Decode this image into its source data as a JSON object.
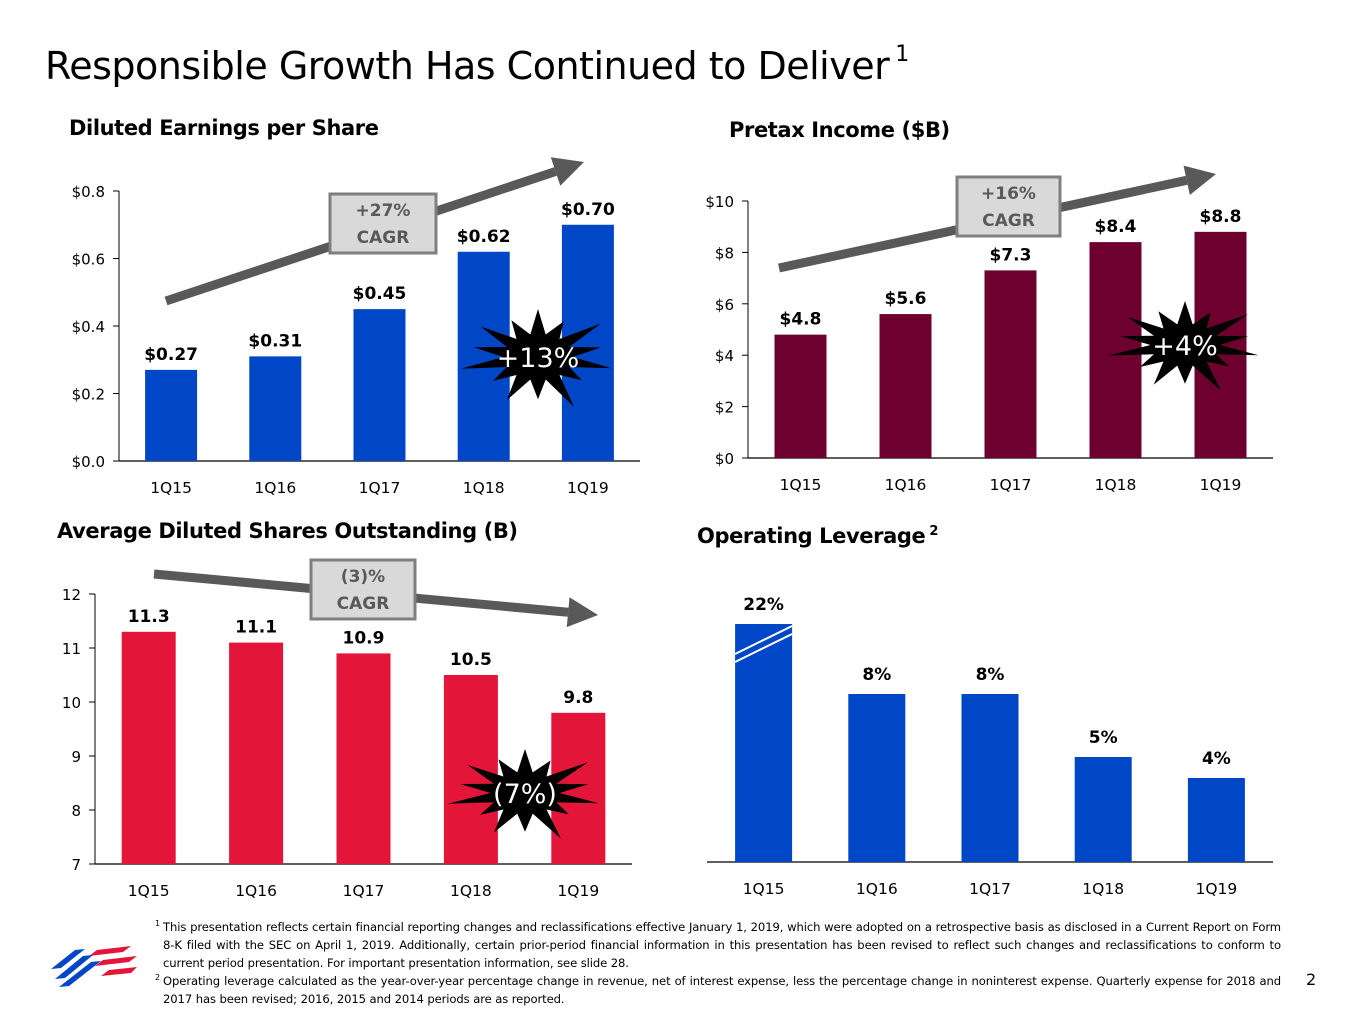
{
  "page": {
    "title": "Responsible Growth Has Continued to Deliver",
    "title_footnote": "1",
    "page_number": "2",
    "footnotes": [
      {
        "marker": "1",
        "text": "This presentation reflects certain financial reporting changes and reclassifications effective January 1, 2019, which were adopted on a retrospective basis as disclosed in a Current Report on Form 8-K filed with the SEC on April 1, 2019. Additionally, certain prior-period financial information in this presentation has been revised to reflect such changes and reclassifications to conform to current period presentation. For important presentation information, see slide 28."
      },
      {
        "marker": "2",
        "text": "Operating leverage calculated as the year-over-year percentage change in revenue, net of interest expense, less the percentage change in noninterest expense. Quarterly expense for 2018 and 2017 has been revised; 2016, 2015 and 2014 periods are as reported."
      }
    ]
  },
  "chart_data": [
    {
      "type": "bar",
      "id": "eps",
      "title": "Diluted Earnings per Share",
      "categories": [
        "1Q15",
        "1Q16",
        "1Q17",
        "1Q18",
        "1Q19"
      ],
      "values": [
        0.27,
        0.31,
        0.45,
        0.62,
        0.7
      ],
      "data_labels": [
        "$0.27",
        "$0.31",
        "$0.45",
        "$0.62",
        "$0.70"
      ],
      "ylim": [
        0,
        0.8
      ],
      "yticks": [
        0,
        0.2,
        0.4,
        0.6,
        0.8
      ],
      "ytick_labels": [
        "$0.0",
        "$0.2",
        "$0.4",
        "$0.6",
        "$0.8"
      ],
      "color": "#0047C8",
      "cagr_label": [
        "+27%",
        "CAGR"
      ],
      "burst_label": "+13%"
    },
    {
      "type": "bar",
      "id": "pretax",
      "title": "Pretax Income ($B)",
      "categories": [
        "1Q15",
        "1Q16",
        "1Q17",
        "1Q18",
        "1Q19"
      ],
      "values": [
        4.8,
        5.6,
        7.3,
        8.4,
        8.8
      ],
      "data_labels": [
        "$4.8",
        "$5.6",
        "$7.3",
        "$8.4",
        "$8.8"
      ],
      "ylim": [
        0,
        10
      ],
      "yticks": [
        0,
        2,
        4,
        6,
        8,
        10
      ],
      "ytick_labels": [
        "$0",
        "$2",
        "$4",
        "$6",
        "$8",
        "$10"
      ],
      "color": "#6E0030",
      "cagr_label": [
        "+16%",
        "CAGR"
      ],
      "burst_label": "+4%"
    },
    {
      "type": "bar",
      "id": "shares",
      "title": "Average Diluted Shares Outstanding (B)",
      "categories": [
        "1Q15",
        "1Q16",
        "1Q17",
        "1Q18",
        "1Q19"
      ],
      "values": [
        11.3,
        11.1,
        10.9,
        10.5,
        9.8
      ],
      "data_labels": [
        "11.3",
        "11.1",
        "10.9",
        "10.5",
        "9.8"
      ],
      "ylim": [
        7,
        12
      ],
      "yticks": [
        7,
        8,
        9,
        10,
        11,
        12
      ],
      "ytick_labels": [
        "7",
        "8",
        "9",
        "10",
        "11",
        "12"
      ],
      "color": "#E3163A",
      "cagr_label": [
        "(3)%",
        "CAGR"
      ],
      "burst_label": "(7%)"
    },
    {
      "type": "bar",
      "id": "leverage",
      "title": "Operating Leverage",
      "title_footnote": "2",
      "categories": [
        "1Q15",
        "1Q16",
        "1Q17",
        "1Q18",
        "1Q19"
      ],
      "values": [
        22,
        8,
        8,
        5,
        4
      ],
      "data_labels": [
        "22%",
        "8%",
        "8%",
        "5%",
        "4%"
      ],
      "axis_break": true,
      "color": "#0047C8"
    }
  ]
}
